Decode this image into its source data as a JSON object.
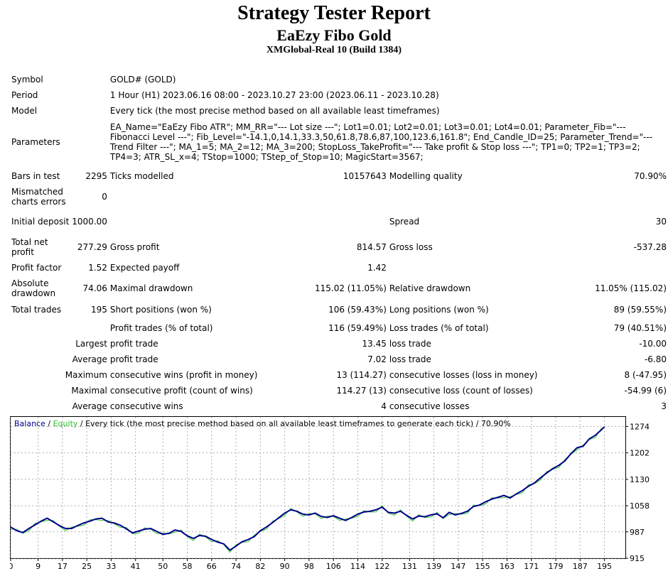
{
  "header": {
    "title": "Strategy Tester Report",
    "expert": "EaEzy Fibo Gold",
    "account": "XMGlobal-Real 10 (Build 1384)"
  },
  "info": {
    "symbol_label": "Symbol",
    "symbol": "GOLD# (GOLD)",
    "period_label": "Period",
    "period": "1 Hour (H1) 2023.06.16 08:00 - 2023.10.27 23:00 (2023.06.11 - 2023.10.28)",
    "model_label": "Model",
    "model": "Every tick (the most precise method based on all available least timeframes)",
    "parameters_label": "Parameters",
    "parameters": "EA_Name=\"EaEzy Fibo ATR\"; MM_RR=\"--- Lot size ---\"; Lot1=0.01; Lot2=0.01; Lot3=0.01; Lot4=0.01; Parameter_Fib=\"--- Fibonacci Level ---\"; Fib_Level=\"-14.1,0,14.1,33.3,50,61.8,78.6,87,100,123.6,161.8\"; End_Candle_ID=25; Parameter_Trend=\"--- Trend Filter ---\"; MA_1=5; MA_2=12; MA_3=200; StopLoss_TakeProfit=\"--- Take profit & Stop loss ---\"; TP1=0; TP2=1; TP3=2; TP4=3; ATR_SL_x=4; TStop=1000; TStep_of_Stop=10; MagicStart=3567;"
  },
  "stats": {
    "bars_label": "Bars in test",
    "bars": "2295",
    "ticks_label": "Ticks modelled",
    "ticks": "10157643",
    "quality_label": "Modelling quality",
    "quality": "70.90%",
    "mismatch_label": "Mismatched charts errors",
    "mismatch": "0",
    "deposit_label": "Initial deposit",
    "deposit": "1000.00",
    "spread_label": "Spread",
    "spread": "30",
    "net_label": "Total net profit",
    "net": "277.29",
    "gross_profit_label": "Gross profit",
    "gross_profit": "814.57",
    "gross_loss_label": "Gross loss",
    "gross_loss": "-537.28",
    "pf_label": "Profit factor",
    "pf": "1.52",
    "payoff_label": "Expected payoff",
    "payoff": "1.42",
    "abs_dd_label": "Absolute drawdown",
    "abs_dd": "74.06",
    "max_dd_label": "Maximal drawdown",
    "max_dd": "115.02 (11.05%)",
    "rel_dd_label": "Relative drawdown",
    "rel_dd": "11.05% (115.02)",
    "trades_label": "Total trades",
    "trades": "195",
    "short_label": "Short positions (won %)",
    "short": "106 (59.43%)",
    "long_label": "Long positions (won %)",
    "long": "89 (59.55%)",
    "profit_trades_label": "Profit trades (% of total)",
    "profit_trades": "116 (59.49%)",
    "loss_trades_label": "Loss trades (% of total)",
    "loss_trades": "79 (40.51%)",
    "largest_label": "Largest",
    "largest_profit_label": "profit trade",
    "largest_profit": "13.45",
    "largest_loss_label": "loss trade",
    "largest_loss": "-10.00",
    "average_label": "Average",
    "average_profit_label": "profit trade",
    "average_profit": "7.02",
    "average_loss_label": "loss trade",
    "average_loss": "-6.80",
    "maximum_label": "Maximum",
    "max_wins_label": "consecutive wins (profit in money)",
    "max_wins": "13 (114.27)",
    "max_losses_label": "consecutive losses (loss in money)",
    "max_losses": "8 (-47.95)",
    "maximal_label": "Maximal",
    "maximal_profit_label": "consecutive profit (count of wins)",
    "maximal_profit": "114.27 (13)",
    "maximal_loss_label": "consecutive loss (count of losses)",
    "maximal_loss": "-54.99 (6)",
    "avg_consec_label": "Average",
    "avg_wins_label": "consecutive wins",
    "avg_wins": "4",
    "avg_losses_label": "consecutive losses",
    "avg_losses": "3"
  },
  "chart_data": {
    "type": "line",
    "legend": {
      "balance": "Balance",
      "sep1": " / ",
      "equity": "Equity",
      "sep2": " / ",
      "rest": "Every tick (the most precise method based on all available least timeframes to generate each tick) / 70.90%"
    },
    "x_ticks": [
      "0",
      "9",
      "17",
      "25",
      "33",
      "41",
      "50",
      "58",
      "66",
      "74",
      "82",
      "90",
      "98",
      "106",
      "114",
      "122",
      "131",
      "139",
      "147",
      "155",
      "163",
      "171",
      "179",
      "187",
      "195"
    ],
    "y_ticks": [
      "1274",
      "1202",
      "1130",
      "1058",
      "987",
      "915"
    ],
    "ylim": [
      915,
      1300
    ],
    "xlim": [
      0,
      200
    ],
    "colors": {
      "balance": "#00008b",
      "equity": "#2ebd2e"
    },
    "series": [
      {
        "name": "Balance",
        "x": [
          0,
          2,
          4,
          6,
          8,
          10,
          12,
          14,
          16,
          18,
          20,
          22,
          24,
          26,
          28,
          30,
          32,
          34,
          36,
          38,
          40,
          42,
          44,
          46,
          48,
          50,
          52,
          54,
          56,
          58,
          60,
          62,
          64,
          66,
          68,
          70,
          72,
          74,
          76,
          78,
          80,
          82,
          84,
          86,
          88,
          90,
          92,
          94,
          96,
          98,
          100,
          102,
          104,
          106,
          108,
          110,
          112,
          114,
          116,
          118,
          120,
          122,
          124,
          126,
          128,
          130,
          132,
          134,
          136,
          138,
          140,
          142,
          144,
          146,
          148,
          150,
          152,
          154,
          156,
          158,
          160,
          162,
          164,
          166,
          168,
          170,
          172,
          174,
          176,
          178,
          180,
          182,
          184,
          186,
          188,
          190,
          192,
          194,
          195
        ],
        "values": [
          1000,
          990,
          985,
          996,
          1006,
          1016,
          1024,
          1014,
          1004,
          996,
          996,
          1004,
          1011,
          1016,
          1022,
          1024,
          1014,
          1011,
          1005,
          995,
          984,
          989,
          994,
          996,
          988,
          980,
          983,
          992,
          988,
          976,
          969,
          977,
          975,
          966,
          959,
          954,
          937,
          948,
          960,
          966,
          974,
          990,
          1000,
          1012,
          1025,
          1038,
          1047,
          1043,
          1035,
          1033,
          1038,
          1029,
          1026,
          1031,
          1024,
          1018,
          1026,
          1035,
          1041,
          1043,
          1047,
          1054,
          1040,
          1038,
          1043,
          1032,
          1022,
          1030,
          1028,
          1033,
          1036,
          1025,
          1040,
          1033,
          1037,
          1043,
          1056,
          1060,
          1069,
          1076,
          1081,
          1086,
          1079,
          1090,
          1099,
          1111,
          1120,
          1134,
          1147,
          1159,
          1168,
          1180,
          1200,
          1216,
          1220,
          1240,
          1250,
          1265,
          1273
        ]
      }
    ]
  }
}
